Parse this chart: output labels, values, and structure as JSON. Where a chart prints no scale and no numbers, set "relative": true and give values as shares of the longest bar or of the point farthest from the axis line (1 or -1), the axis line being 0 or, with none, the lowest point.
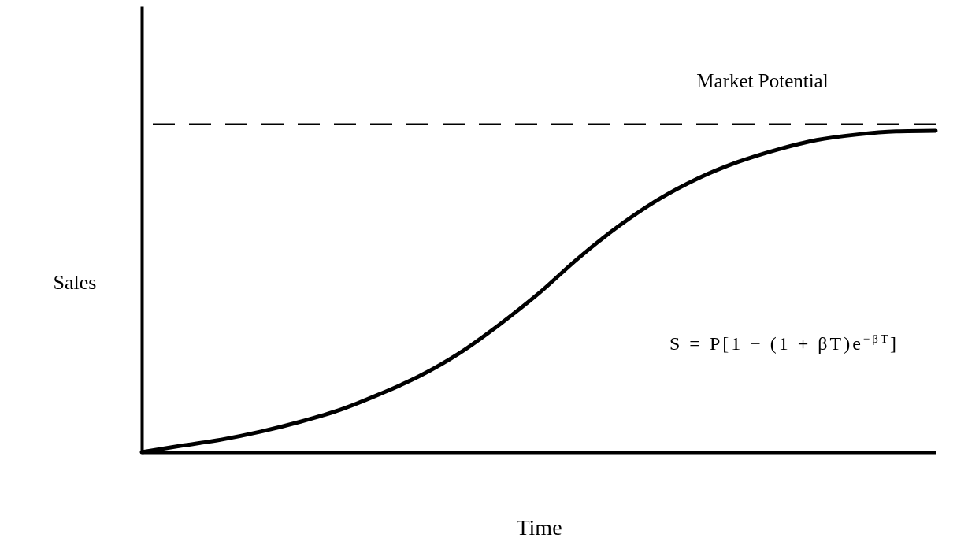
{
  "chart_data": {
    "type": "line",
    "relative": true,
    "xlabel": "Time",
    "ylabel": "Sales",
    "categories": [
      null,
      null,
      null,
      null,
      null,
      null,
      null,
      null,
      null,
      null,
      null,
      null,
      null,
      null,
      null,
      null,
      null,
      null,
      null,
      null,
      null
    ],
    "series": [
      {
        "color": "#000000",
        "values": [
          0,
          0.02,
          0.039,
          0.064,
          0.095,
          0.132,
          0.181,
          0.237,
          0.308,
          0.396,
          0.494,
          0.604,
          0.702,
          0.785,
          0.851,
          0.902,
          0.941,
          0.971,
          0.988,
          0.998,
          1.0
        ]
      }
    ],
    "ref_lines": [
      {
        "axis": "y",
        "value": 1.02,
        "label": "Market Potential",
        "line_style": "dashed",
        "color": "#000000"
      }
    ],
    "annotations": [
      "S = P[1 − (1 + βT)e$^{−βT}$]"
    ],
    "marker": "none",
    "line_style": "solid",
    "grid": false
  }
}
